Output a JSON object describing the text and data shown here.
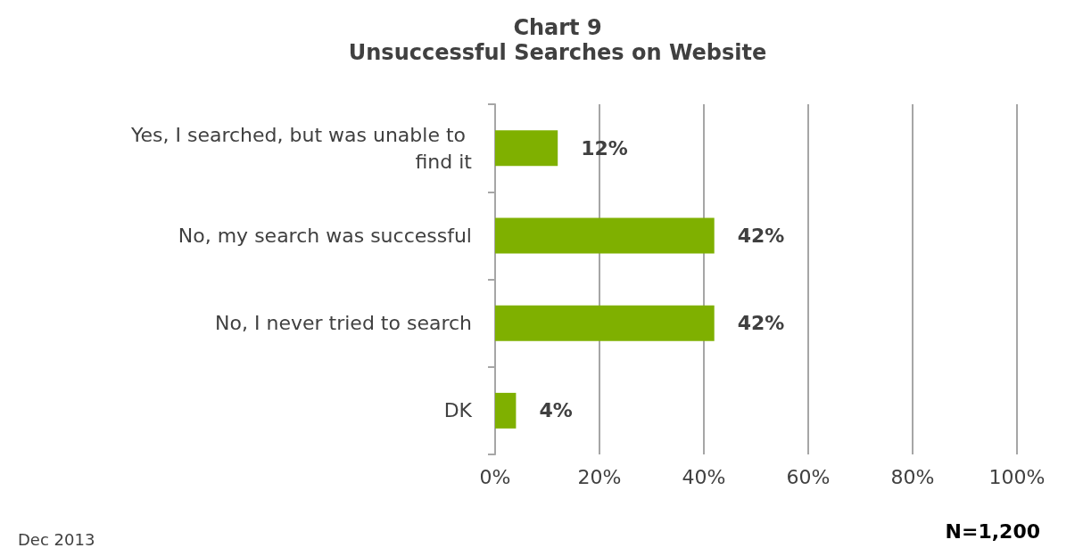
{
  "chart_data": {
    "type": "bar",
    "orientation": "horizontal",
    "title": "Chart 9",
    "subtitle": "Unsuccessful Searches on Website",
    "categories": [
      "Yes, I searched, but was unable to find it",
      "No, my search was successful",
      "No, I never tried to search",
      "DK"
    ],
    "values": [
      12,
      42,
      42,
      4
    ],
    "color": "#7fb000",
    "value_labels": [
      "12%",
      "42%",
      "42%",
      "4%"
    ],
    "xlim": [
      0,
      100
    ],
    "xticks": [
      {
        "value": 0,
        "label": "0%"
      },
      {
        "value": 20,
        "label": "20%"
      },
      {
        "value": 40,
        "label": "40%"
      },
      {
        "value": 60,
        "label": "60%"
      },
      {
        "value": 80,
        "label": "80%"
      },
      {
        "value": 100,
        "label": "100%"
      }
    ],
    "grid": "x",
    "annotations": [
      "N=1,200",
      "Dec 2013"
    ]
  }
}
